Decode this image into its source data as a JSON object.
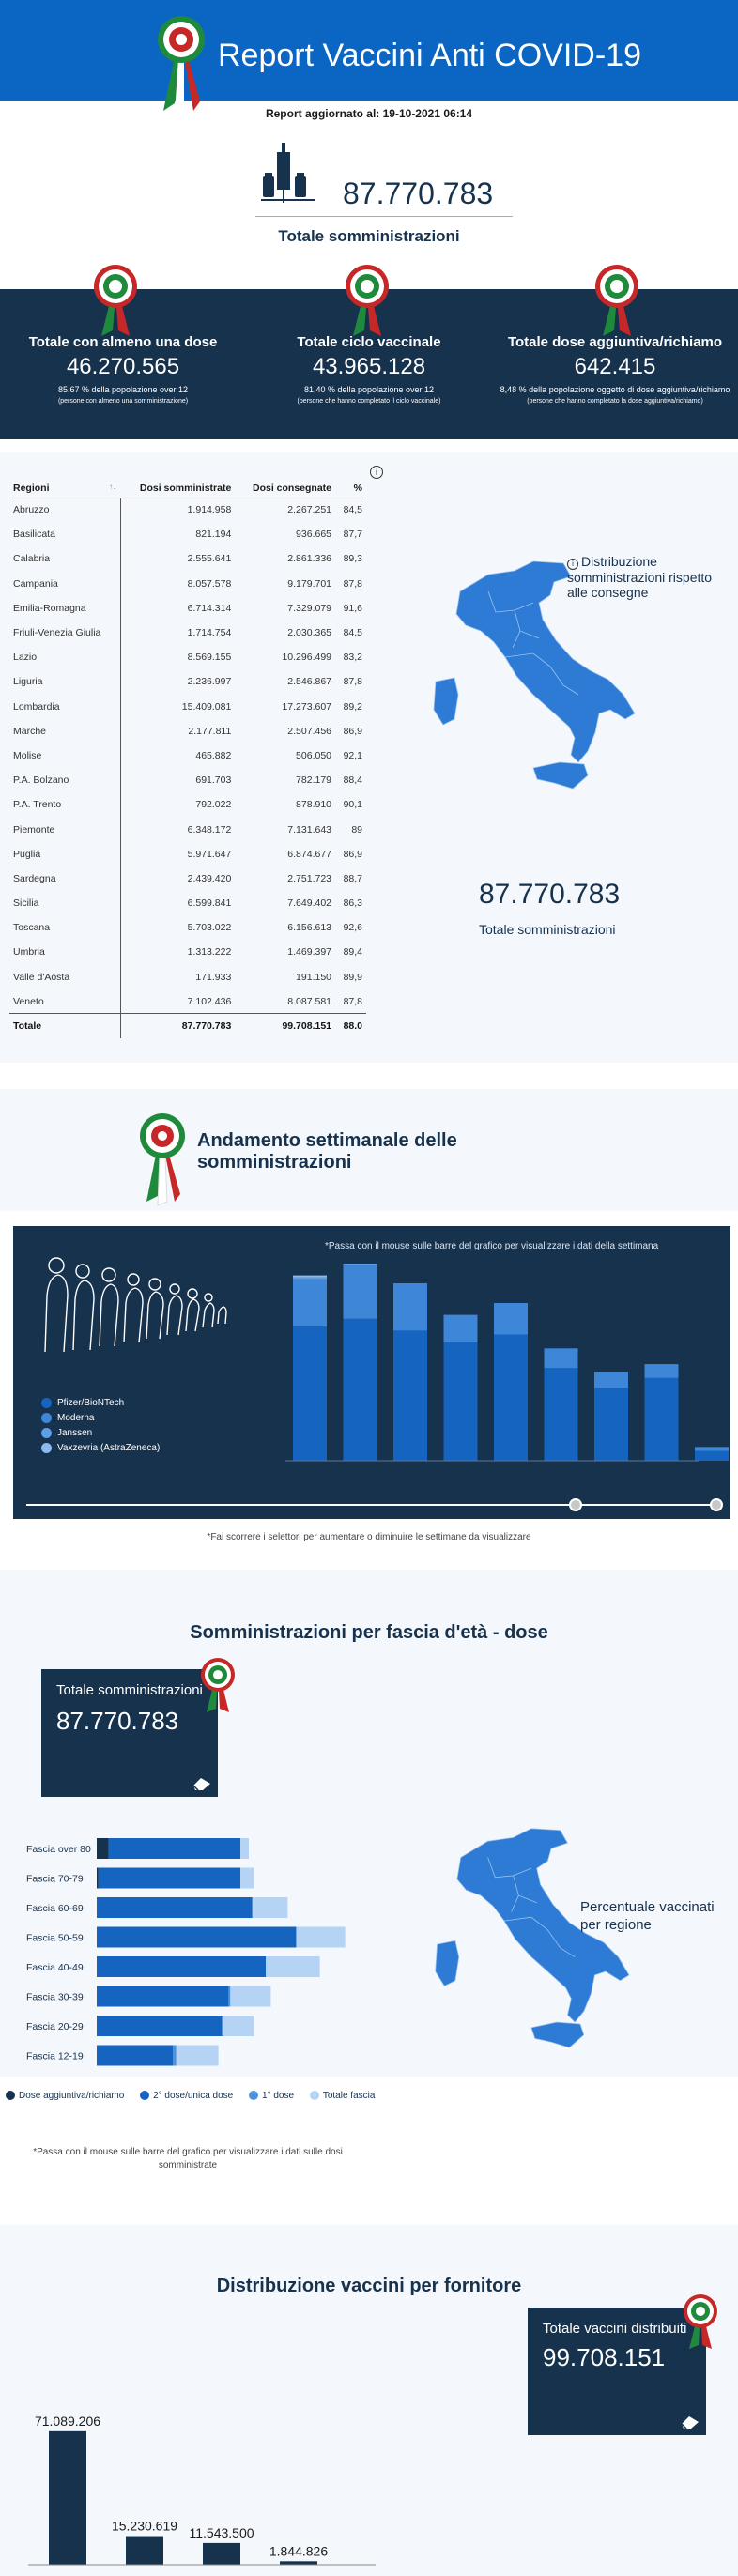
{
  "header": {
    "title": "Report Vaccini Anti COVID-19"
  },
  "updated": "Report aggiornato al: 19-10-2021 06:14",
  "total_administrations": {
    "value": "87.770.783",
    "label": "Totale somministrazioni"
  },
  "kpis": [
    {
      "title": "Totale con almeno una dose",
      "value": "46.270.565",
      "sub": "85,67 % della popolazione over 12",
      "note": "(persone con almeno una somministrazione)"
    },
    {
      "title": "Totale ciclo vaccinale",
      "value": "43.965.128",
      "sub": "81,40 % della popolazione over 12",
      "note": "(persone che hanno completato il ciclo vaccinale)"
    },
    {
      "title": "Totale dose aggiuntiva/richiamo",
      "value": "642.415",
      "sub": "8,48 % della popolazione oggetto di dose aggiuntiva/richiamo",
      "note": "(persone che hanno completato la dose aggiuntiva/richiamo)"
    }
  ],
  "regions_table": {
    "headers": [
      "Regioni",
      "Dosi somministrate",
      "Dosi consegnate",
      "%"
    ],
    "rows": [
      [
        "Abruzzo",
        "1.914.958",
        "2.267.251",
        "84,5"
      ],
      [
        "Basilicata",
        "821.194",
        "936.665",
        "87,7"
      ],
      [
        "Calabria",
        "2.555.641",
        "2.861.336",
        "89,3"
      ],
      [
        "Campania",
        "8.057.578",
        "9.179.701",
        "87,8"
      ],
      [
        "Emilia-Romagna",
        "6.714.314",
        "7.329.079",
        "91,6"
      ],
      [
        "Friuli-Venezia Giulia",
        "1.714.754",
        "2.030.365",
        "84,5"
      ],
      [
        "Lazio",
        "8.569.155",
        "10.296.499",
        "83,2"
      ],
      [
        "Liguria",
        "2.236.997",
        "2.546.867",
        "87,8"
      ],
      [
        "Lombardia",
        "15.409.081",
        "17.273.607",
        "89,2"
      ],
      [
        "Marche",
        "2.177.811",
        "2.507.456",
        "86,9"
      ],
      [
        "Molise",
        "465.882",
        "506.050",
        "92,1"
      ],
      [
        "P.A. Bolzano",
        "691.703",
        "782.179",
        "88,4"
      ],
      [
        "P.A. Trento",
        "792.022",
        "878.910",
        "90,1"
      ],
      [
        "Piemonte",
        "6.348.172",
        "7.131.643",
        "89"
      ],
      [
        "Puglia",
        "5.971.647",
        "6.874.677",
        "86,9"
      ],
      [
        "Sardegna",
        "2.439.420",
        "2.751.723",
        "88,7"
      ],
      [
        "Sicilia",
        "6.599.841",
        "7.649.402",
        "86,3"
      ],
      [
        "Toscana",
        "5.703.022",
        "6.156.613",
        "92,6"
      ],
      [
        "Umbria",
        "1.313.222",
        "1.469.397",
        "89,4"
      ],
      [
        "Valle d'Aosta",
        "171.933",
        "191.150",
        "89,9"
      ],
      [
        "Veneto",
        "7.102.436",
        "8.087.581",
        "87,8"
      ]
    ],
    "total": [
      "Totale",
      "87.770.783",
      "99.708.151",
      "88.0"
    ]
  },
  "distribution_note": "Distribuzione somministrazioni rispetto alle consegne",
  "weekly": {
    "title": "Andamento settimanale delle somministrazioni",
    "hint": "*Passa con il mouse sulle barre del grafico per visualizzare i dati della settimana",
    "note": "*Fai scorrere i selettori per aumentare o diminuire le settimane da visualizzare",
    "legend": [
      {
        "name": "Pfizer/BioNTech",
        "color": "#1565c0"
      },
      {
        "name": "Moderna",
        "color": "#3d86d8"
      },
      {
        "name": "Janssen",
        "color": "#5e9ee6"
      },
      {
        "name": "Vaxzevria (AstraZeneca)",
        "color": "#8bbaf0"
      }
    ]
  },
  "chart_data": [
    {
      "type": "bar",
      "title": "Andamento settimanale delle somministrazioni",
      "categories": [
        "",
        "",
        "",
        "",
        "",
        "",
        "",
        "",
        ""
      ],
      "series": [
        {
          "name": "Pfizer/BioNTech",
          "values": [
            0.68,
            0.72,
            0.66,
            0.6,
            0.64,
            0.47,
            0.37,
            0.42,
            0.05
          ]
        },
        {
          "name": "Moderna",
          "values": [
            0.24,
            0.27,
            0.24,
            0.14,
            0.16,
            0.1,
            0.08,
            0.07,
            0.02
          ]
        },
        {
          "name": "Janssen",
          "values": [
            0.01,
            0.01,
            0.0,
            0.0,
            0.0,
            0.0,
            0.0,
            0.0,
            0.0
          ]
        },
        {
          "name": "Vaxzevria (AstraZeneca)",
          "values": [
            0.01,
            0.0,
            0.0,
            0.0,
            0.0,
            0.0,
            0.0,
            0.0,
            0.0
          ]
        }
      ]
    },
    {
      "type": "bar",
      "title": "Somministrazioni per fascia d'età - dose",
      "orientation": "horizontal",
      "categories": [
        "Fascia over 80",
        "Fascia 70-79",
        "Fascia 60-69",
        "Fascia 50-59",
        "Fascia 40-49",
        "Fascia 30-39",
        "Fascia 20-29",
        "Fascia 12-19"
      ],
      "series": [
        {
          "name": "Dose aggiuntiva/richiamo",
          "values": [
            0.07,
            0.01,
            0.0,
            0.0,
            0.0,
            0.0,
            0.0,
            0.0
          ]
        },
        {
          "name": "2° dose/unica dose",
          "values": [
            0.78,
            0.84,
            0.92,
            1.18,
            1.0,
            0.78,
            0.74,
            0.45
          ]
        },
        {
          "name": "1° dose",
          "values": [
            0.0,
            0.0,
            0.0,
            0.0,
            0.0,
            0.01,
            0.01,
            0.02
          ]
        },
        {
          "name": "Totale fascia",
          "values": [
            0.9,
            0.93,
            1.13,
            1.47,
            1.32,
            1.03,
            0.93,
            0.72
          ]
        }
      ]
    },
    {
      "type": "bar",
      "title": "Distribuzione vaccini per fornitore",
      "categories": [
        "",
        "",
        "",
        ""
      ],
      "values": [
        71089206,
        15230619,
        11543500,
        1844826
      ],
      "labels": [
        "71.089.206",
        "15.230.619",
        "11.543.500",
        "1.844.826"
      ]
    }
  ],
  "age": {
    "title": "Somministrazioni per fascia d'età - dose",
    "box_label": "Totale somministrazioni",
    "box_value": "87.770.783",
    "perc_label": "Percentuale vaccinati per regione",
    "legend": [
      {
        "name": "Dose aggiuntiva/richiamo",
        "color": "#17324d"
      },
      {
        "name": "2° dose/unica dose",
        "color": "#1565c0"
      },
      {
        "name": "1° dose",
        "color": "#4d94e0"
      },
      {
        "name": "Totale fascia",
        "color": "#b5d3f5"
      }
    ],
    "note": "*Passa con il mouse sulle barre del grafico per visualizzare i dati sulle dosi somministrate"
  },
  "supplier": {
    "title": "Distribuzione vaccini per fornitore",
    "box_label": "Totale vaccini distribuiti",
    "box_value": "99.708.151"
  },
  "colors": {
    "brand": "#0a66c2",
    "navy": "#17324d",
    "map": "#2e7bd6"
  }
}
